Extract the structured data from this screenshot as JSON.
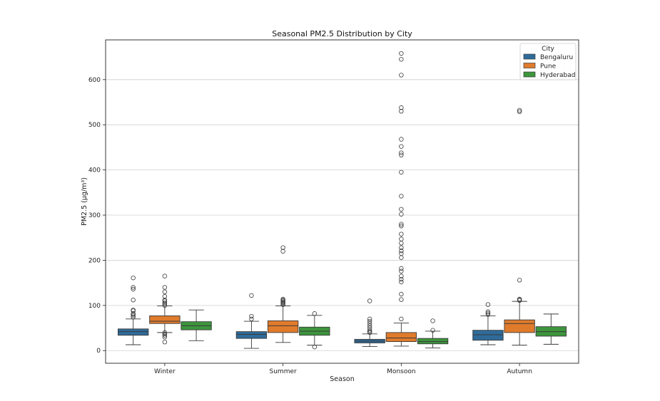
{
  "chart_data": {
    "type": "boxplot",
    "title": "Seasonal PM2.5 Distribution by City",
    "xlabel": "Season",
    "ylabel": "PM2.5 (µg/m³)",
    "ylim": [
      -28,
      688
    ],
    "yticks": [
      0,
      100,
      200,
      300,
      400,
      500,
      600
    ],
    "grid": "y",
    "categories": [
      "Winter",
      "Summer",
      "Monsoon",
      "Autumn"
    ],
    "legend": {
      "title": "City",
      "position": "top-right"
    },
    "series": [
      {
        "name": "Bengaluru",
        "color": "#2f6b9a",
        "boxes": [
          {
            "whisker_low": 13,
            "q1": 34,
            "median": 42,
            "q3": 48,
            "whisker_high": 70,
            "outliers": [
              74,
              77,
              80,
              82,
              88,
              90,
              112,
              136,
              140,
              161
            ]
          },
          {
            "whisker_low": 5,
            "q1": 27,
            "median": 36,
            "q3": 42,
            "whisker_high": 65,
            "outliers": [
              70,
              76,
              122
            ]
          },
          {
            "whisker_low": 9,
            "q1": 17,
            "median": 21,
            "q3": 25,
            "whisker_high": 37,
            "outliers": [
              40,
              42,
              45,
              50,
              55,
              60,
              65,
              70,
              110
            ]
          },
          {
            "whisker_low": 13,
            "q1": 23,
            "median": 35,
            "q3": 45,
            "whisker_high": 77,
            "outliers": [
              80,
              83,
              86,
              102
            ]
          }
        ]
      },
      {
        "name": "Pune",
        "color": "#e07b2c",
        "boxes": [
          {
            "whisker_low": 40,
            "q1": 60,
            "median": 65,
            "q3": 77,
            "whisker_high": 99,
            "outliers": [
              19,
              30,
              34,
              37,
              40,
              100,
              103,
              106,
              110,
              112,
              120,
              130,
              140,
              165
            ]
          },
          {
            "whisker_low": 18,
            "q1": 40,
            "median": 55,
            "q3": 66,
            "whisker_high": 99,
            "outliers": [
              102,
              104,
              106,
              108,
              110,
              112,
              114,
              220,
              228
            ]
          },
          {
            "whisker_low": 10,
            "q1": 20,
            "median": 28,
            "q3": 40,
            "whisker_high": 61,
            "outliers": [
              70,
              113,
              125,
              152,
              158,
              165,
              176,
              182,
              206,
              215,
              221,
              228,
              238,
              247,
              258,
              276,
              280,
              302,
              313,
              342,
              395,
              433,
              438,
              452,
              468,
              530,
              538,
              610,
              645,
              658
            ]
          },
          {
            "whisker_low": 12,
            "q1": 40,
            "median": 60,
            "q3": 68,
            "whisker_high": 109,
            "outliers": [
              111,
              113,
              114,
              156,
              529,
              532
            ]
          }
        ]
      },
      {
        "name": "Hyderabad",
        "color": "#3d953d",
        "boxes": [
          {
            "whisker_low": 22,
            "q1": 46,
            "median": 55,
            "q3": 64,
            "whisker_high": 90,
            "outliers": []
          },
          {
            "whisker_low": 12,
            "q1": 34,
            "median": 43,
            "q3": 52,
            "whisker_high": 78,
            "outliers": [
              8,
              82
            ]
          },
          {
            "whisker_low": 6,
            "q1": 15,
            "median": 20,
            "q3": 27,
            "whisker_high": 43,
            "outliers": [
              45,
              66
            ]
          },
          {
            "whisker_low": 14,
            "q1": 32,
            "median": 42,
            "q3": 53,
            "whisker_high": 81,
            "outliers": []
          }
        ]
      }
    ]
  }
}
